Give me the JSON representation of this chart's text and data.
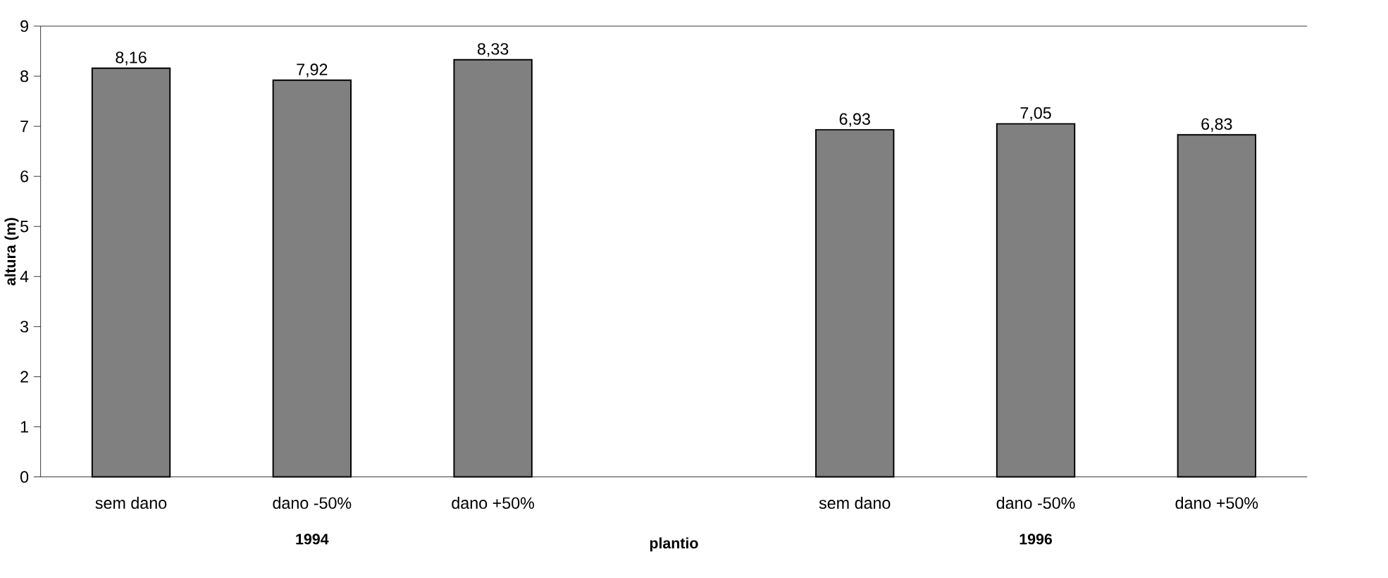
{
  "chart_data": {
    "type": "bar",
    "xlabel": "plantio",
    "ylabel": "altura (m)",
    "categories": [
      "sem dano",
      "dano -50%",
      "dano +50%",
      null,
      "sem dano",
      "dano -50%",
      "dano +50%"
    ],
    "values": [
      8.16,
      7.92,
      8.33,
      null,
      6.93,
      7.05,
      6.83
    ],
    "value_labels": [
      "8,16",
      "7,92",
      "8,33",
      null,
      "6,93",
      "7,05",
      "6,83"
    ],
    "color": "#808080",
    "ylim": [
      0,
      9
    ],
    "yticks": [
      0,
      1,
      2,
      3,
      4,
      5,
      6,
      7,
      8,
      9
    ],
    "annotations": [
      "1994",
      "1996"
    ]
  }
}
